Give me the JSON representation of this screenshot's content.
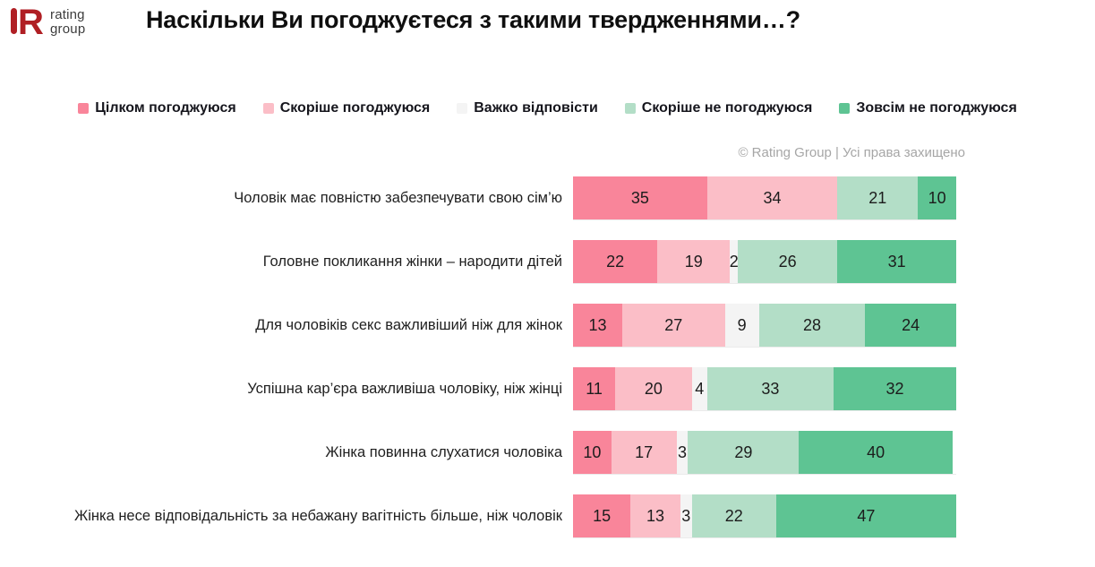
{
  "logo": {
    "line1": "rating",
    "line2": "group",
    "brand_red": "#b01f24"
  },
  "title": "Наскільки Ви погоджуєтеся з такими твердженнями…?",
  "copyright": "© Rating Group | Усі права захищено",
  "chart_data": {
    "type": "bar",
    "orientation": "horizontal-stacked",
    "unit": "percent",
    "xlim": [
      0,
      100
    ],
    "grid": false,
    "legend_position": "top",
    "title": "Наскільки Ви погоджуєтеся з такими твердженнями…?",
    "series_labels": [
      "Цілком погоджуюся",
      "Скоріше погоджуюся",
      "Важко відповісти",
      "Скоріше не погоджуюся",
      "Зовсім не погоджуюся"
    ],
    "series_colors": [
      "#f9859a",
      "#fbbec7",
      "#f4f4f4",
      "#b3dec7",
      "#5ec493"
    ],
    "categories": [
      "Чоловік має повністю забезпечувати свою сім’ю",
      "Головне покликання жінки – народити дітей",
      "Для чоловіків секс важливіший ніж для жінок",
      "Успішна кар’єра важливіша чоловіку, ніж жінці",
      "Жінка повинна слухатися чоловіка",
      "Жінка несе відповідальність за небажану вагітність більше, ніж чоловік"
    ],
    "rows": [
      {
        "label": "Чоловік має повністю забезпечувати свою сім’ю",
        "values": [
          35,
          34,
          0,
          21,
          10
        ]
      },
      {
        "label": "Головне покликання жінки – народити дітей",
        "values": [
          22,
          19,
          2,
          26,
          31
        ]
      },
      {
        "label": "Для чоловіків секс важливіший ніж для жінок",
        "values": [
          13,
          27,
          9,
          28,
          24
        ]
      },
      {
        "label": "Успішна кар’єра важливіша чоловіку, ніж жінці",
        "values": [
          11,
          20,
          4,
          33,
          32
        ]
      },
      {
        "label": "Жінка повинна слухатися чоловіка",
        "values": [
          10,
          17,
          3,
          29,
          40
        ]
      },
      {
        "label": "Жінка несе відповідальність за небажану вагітність більше, ніж чоловік",
        "values": [
          15,
          13,
          3,
          22,
          47
        ]
      }
    ]
  }
}
